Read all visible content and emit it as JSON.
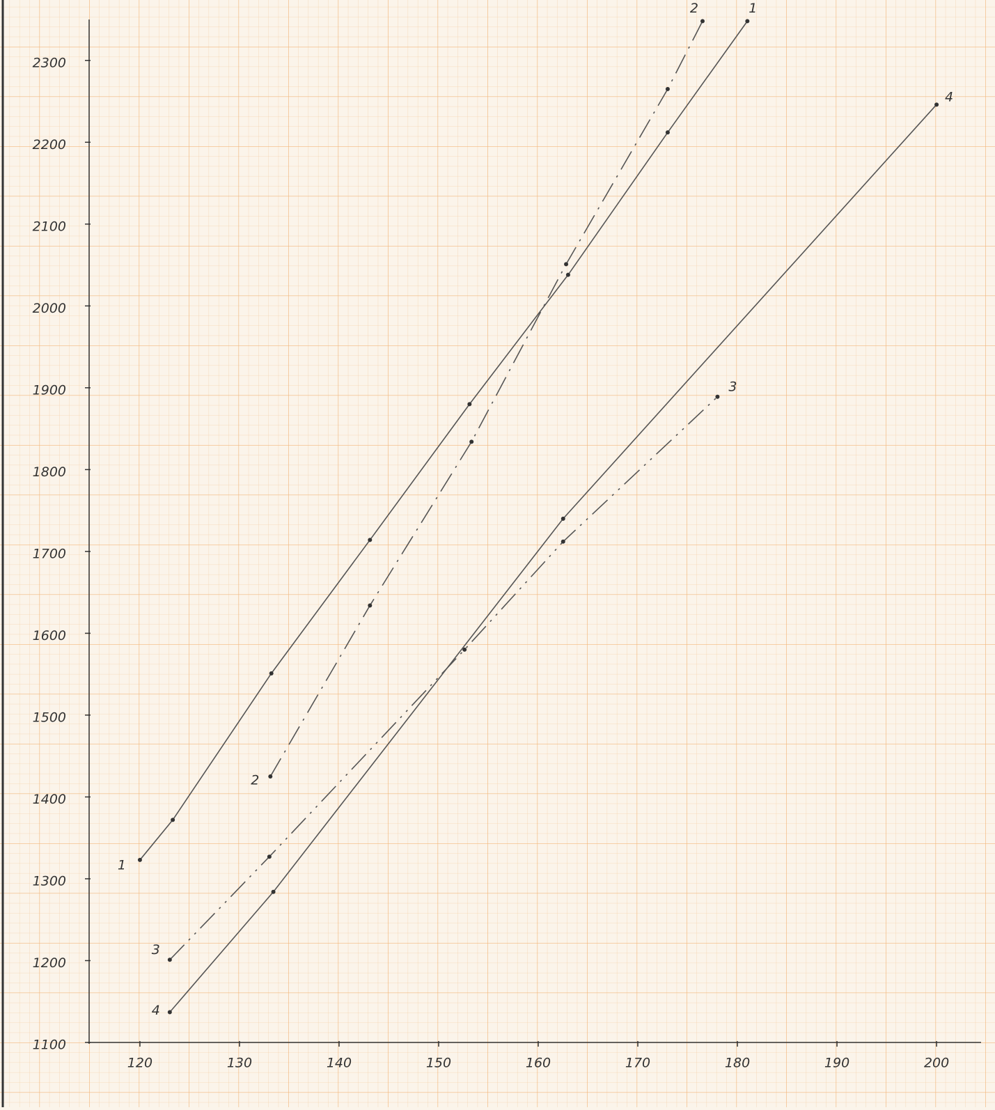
{
  "chart_data": {
    "type": "line",
    "series": [
      {
        "name": "1",
        "color": "#555555",
        "dash": "solid",
        "x": [
          120,
          123.3,
          133.2,
          143.1,
          153.1,
          163,
          173,
          181
        ],
        "values": [
          1323,
          1372,
          1551,
          1714,
          1880,
          2038,
          2212,
          2348
        ]
      },
      {
        "name": "2",
        "color": "#555555",
        "dash": "dashdot",
        "x": [
          133.1,
          143.1,
          153.3,
          162.8,
          173,
          176.5
        ],
        "values": [
          1425,
          1634,
          1834,
          2051,
          2265,
          2348
        ]
      },
      {
        "name": "3",
        "color": "#555555",
        "dash": "dashdotdot",
        "x": [
          123,
          133,
          152.6,
          162.5,
          178
        ],
        "values": [
          1201,
          1327,
          1580,
          1712,
          1889
        ]
      },
      {
        "name": "4",
        "color": "#555555",
        "dash": "solid",
        "x": [
          123,
          133.4,
          162.5,
          200
        ],
        "values": [
          1137,
          1284,
          1740,
          2246
        ]
      }
    ],
    "xlim": [
      114.9,
      204.4
    ],
    "ylim": [
      1100,
      2350
    ],
    "xticks": [
      120,
      130,
      140,
      150,
      160,
      170,
      180,
      190,
      200
    ],
    "yticks": [
      1100,
      1200,
      1300,
      1400,
      1500,
      1600,
      1700,
      1800,
      1900,
      2000,
      2100,
      2200,
      2300
    ]
  }
}
